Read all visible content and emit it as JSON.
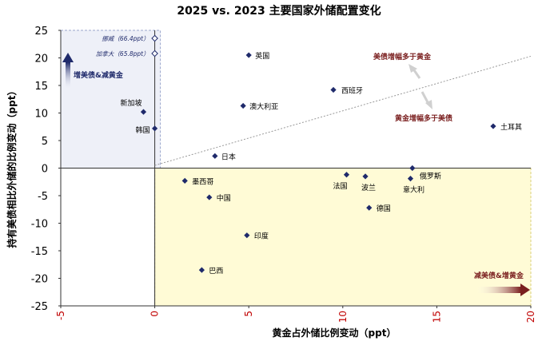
{
  "chart_data": {
    "type": "scatter",
    "title": "2025 vs. 2023 主要国家外储配置变化",
    "xlabel": "黄金占外储比例变动（ppt）",
    "ylabel": "持有美债相比外储的比例变动（ppt）",
    "xlim": [
      -5,
      20
    ],
    "ylim": [
      -25,
      25
    ],
    "x_ticks": [
      "-5",
      "0",
      "5",
      "10",
      "15",
      "20"
    ],
    "y_ticks": [
      "25",
      "20",
      "15",
      "10",
      "5",
      "0",
      "-5",
      "-10",
      "-15",
      "-20",
      "-25"
    ],
    "grid": false,
    "points": [
      {
        "label": "英国",
        "x": 5.0,
        "y": 20.5
      },
      {
        "label": "西班牙",
        "x": 9.5,
        "y": 14.2
      },
      {
        "label": "澳大利亚",
        "x": 4.7,
        "y": 11.3
      },
      {
        "label": "新加坡",
        "x": -0.6,
        "y": 10.2
      },
      {
        "label": "韩国",
        "x": 0.0,
        "y": 7.2
      },
      {
        "label": "日本",
        "x": 3.2,
        "y": 2.2
      },
      {
        "label": "土耳其",
        "x": 18.0,
        "y": 7.6
      },
      {
        "label": "墨西哥",
        "x": 1.6,
        "y": -2.3
      },
      {
        "label": "中国",
        "x": 2.9,
        "y": -5.3
      },
      {
        "label": "法国",
        "x": 10.2,
        "y": -1.2
      },
      {
        "label": "波兰",
        "x": 11.2,
        "y": -1.5
      },
      {
        "label": "意大利",
        "x": 13.6,
        "y": -1.9
      },
      {
        "label": "俄罗斯",
        "x": 13.7,
        "y": 0.0
      },
      {
        "label": "德国",
        "x": 11.4,
        "y": -7.2
      },
      {
        "label": "印度",
        "x": 4.9,
        "y": -12.2
      },
      {
        "label": "巴西",
        "x": 2.5,
        "y": -18.5
      }
    ],
    "offscale_points": [
      {
        "label": "挪威（66.4ppt）",
        "x": 0.0,
        "y": 66.4
      },
      {
        "label": "加拿大（65.8ppt）",
        "x": 0.0,
        "y": 65.8
      }
    ],
    "reference_line": {
      "from": [
        0,
        0.5
      ],
      "to": [
        20,
        20.3
      ]
    },
    "annotations": {
      "top_left": "增美债&减黄金",
      "bottom_right": "减美债&增黄金",
      "above_line": "美债增幅多于黄金",
      "below_line": "黄金增幅多于美债"
    },
    "colors": {
      "point": "#1f2a6b",
      "title": "#000000",
      "x_ticks": "#c00000",
      "annotation_dark": "#7a1f1f",
      "annotation_navy": "#1f2a6b",
      "top_left_fill": "#eef0f8",
      "bottom_right_fill": "#fffbd6"
    }
  }
}
